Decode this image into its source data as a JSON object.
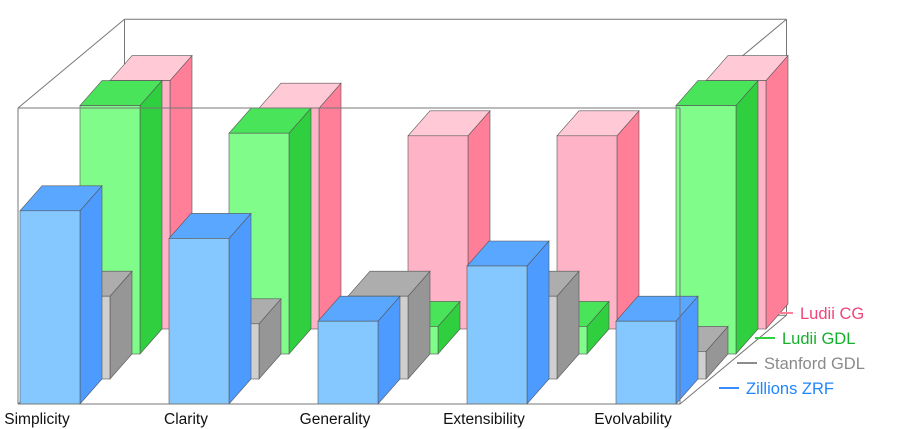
{
  "chart_data": {
    "type": "bar",
    "style": "3d-grouped",
    "title": "",
    "xlabel": "",
    "ylabel": "",
    "ylim": [
      0,
      10
    ],
    "grid": false,
    "y_ticks_shown": false,
    "legend_position": "bottom-right",
    "categories": [
      "Simplicity",
      "Clarity",
      "Generality",
      "Extensibility",
      "Evolvability"
    ],
    "series": [
      {
        "name": "Ludii CG",
        "color": "#ff7f98",
        "values": [
          9,
          8,
          7,
          7,
          9
        ]
      },
      {
        "name": "Ludii GDL",
        "color": "#2fcf3f",
        "values": [
          9,
          8,
          1,
          1,
          9
        ]
      },
      {
        "name": "Stanford GDL",
        "color": "#8c8c8c",
        "values": [
          3,
          2,
          3,
          3,
          1
        ]
      },
      {
        "name": "Zillions ZRF",
        "color": "#3a8dff",
        "values": [
          7,
          6,
          3,
          5,
          3
        ]
      }
    ]
  }
}
